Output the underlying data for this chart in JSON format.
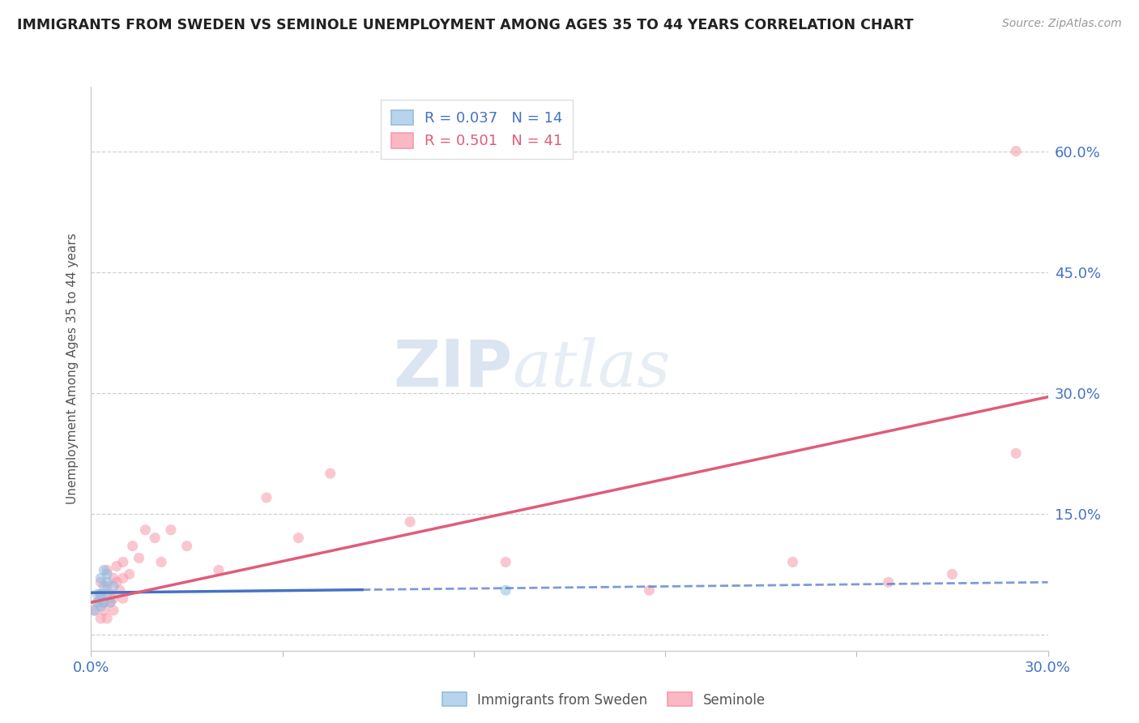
{
  "title": "IMMIGRANTS FROM SWEDEN VS SEMINOLE UNEMPLOYMENT AMONG AGES 35 TO 44 YEARS CORRELATION CHART",
  "source": "Source: ZipAtlas.com",
  "ylabel": "Unemployment Among Ages 35 to 44 years",
  "xlim": [
    0.0,
    0.3
  ],
  "ylim": [
    -0.02,
    0.68
  ],
  "yticks": [
    0.0,
    0.15,
    0.3,
    0.45,
    0.6
  ],
  "ytick_labels": [
    "",
    "15.0%",
    "30.0%",
    "45.0%",
    "60.0%"
  ],
  "xticks": [
    0.0,
    0.06,
    0.12,
    0.18,
    0.24,
    0.3
  ],
  "xtick_labels": [
    "0.0%",
    "",
    "",
    "",
    "",
    "30.0%"
  ],
  "sweden_scatter_x": [
    0.001,
    0.002,
    0.002,
    0.003,
    0.003,
    0.003,
    0.004,
    0.004,
    0.004,
    0.005,
    0.005,
    0.005,
    0.006,
    0.007,
    0.13
  ],
  "sweden_scatter_y": [
    0.03,
    0.04,
    0.05,
    0.035,
    0.05,
    0.07,
    0.04,
    0.06,
    0.08,
    0.05,
    0.065,
    0.075,
    0.04,
    0.06,
    0.055
  ],
  "seminole_scatter_x": [
    0.001,
    0.002,
    0.003,
    0.003,
    0.004,
    0.005,
    0.005,
    0.006,
    0.007,
    0.007,
    0.008,
    0.009,
    0.01,
    0.01,
    0.012,
    0.013,
    0.015,
    0.017,
    0.02,
    0.022,
    0.025,
    0.03,
    0.04,
    0.055,
    0.065,
    0.075,
    0.1,
    0.13,
    0.175,
    0.22,
    0.25,
    0.27,
    0.29,
    0.003,
    0.004,
    0.005,
    0.006,
    0.007,
    0.008,
    0.01,
    0.29
  ],
  "seminole_scatter_y": [
    0.03,
    0.04,
    0.05,
    0.065,
    0.04,
    0.06,
    0.08,
    0.05,
    0.045,
    0.07,
    0.065,
    0.055,
    0.07,
    0.09,
    0.075,
    0.11,
    0.095,
    0.13,
    0.12,
    0.09,
    0.13,
    0.11,
    0.08,
    0.17,
    0.12,
    0.2,
    0.14,
    0.09,
    0.055,
    0.09,
    0.065,
    0.075,
    0.225,
    0.02,
    0.03,
    0.02,
    0.04,
    0.03,
    0.085,
    0.045,
    0.6
  ],
  "sweden_line_x": [
    0.0,
    0.3
  ],
  "sweden_line_y": [
    0.052,
    0.065
  ],
  "seminole_line_x": [
    0.0,
    0.3
  ],
  "seminole_line_y": [
    0.04,
    0.295
  ],
  "scatter_color_sweden": "#92bce0",
  "scatter_color_seminole": "#f799aa",
  "line_color_sweden": "#4472c4",
  "line_color_seminole": "#e05c7a",
  "grid_color": "#d0d0d0",
  "background_color": "#ffffff",
  "watermark_zip": "ZIP",
  "watermark_atlas": "atlas",
  "scatter_alpha": 0.55,
  "scatter_size": 90
}
